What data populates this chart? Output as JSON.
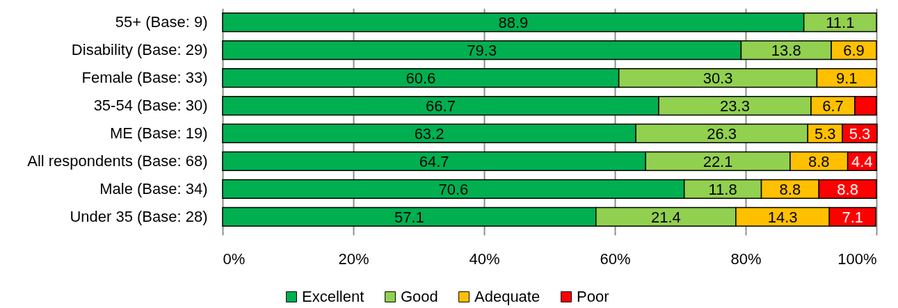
{
  "chart_data": {
    "type": "bar",
    "orientation": "horizontal",
    "stacked": true,
    "categories": [
      "55+ (Base: 9)",
      "Disability (Base: 29)",
      "Female (Base: 33)",
      "35-54 (Base: 30)",
      "ME (Base: 19)",
      "All respondents (Base: 68)",
      "Male (Base: 34)",
      "Under 35 (Base: 28)"
    ],
    "series": [
      {
        "name": "Excellent",
        "color": "#00b050",
        "values": [
          88.9,
          79.3,
          60.6,
          66.7,
          63.2,
          64.7,
          70.6,
          57.1
        ],
        "value_labels": [
          "88.9",
          "79.3",
          "60.6",
          "66.7",
          "63.2",
          "64.7",
          "70.6",
          "57.1"
        ]
      },
      {
        "name": "Good",
        "color": "#92d050",
        "values": [
          11.1,
          13.8,
          30.3,
          23.3,
          26.3,
          22.1,
          11.8,
          21.4
        ],
        "value_labels": [
          "11.1",
          "13.8",
          "30.3",
          "23.3",
          "26.3",
          "22.1",
          "11.8",
          "21.4"
        ]
      },
      {
        "name": "Adequate",
        "color": "#ffc000",
        "values": [
          null,
          6.9,
          9.1,
          6.7,
          5.3,
          8.8,
          8.8,
          14.3
        ],
        "value_labels": [
          null,
          "6.9",
          "9.1",
          "6.7",
          "5.3",
          "8.8",
          "8.8",
          "14.3"
        ]
      },
      {
        "name": "Poor",
        "color": "#ff0000",
        "values": [
          null,
          null,
          null,
          3.3,
          5.3,
          4.4,
          8.8,
          7.1
        ],
        "value_labels": [
          null,
          null,
          null,
          null,
          "5.3",
          "4.4",
          "8.8",
          "7.1"
        ]
      }
    ],
    "xlim": [
      0,
      100
    ],
    "xticks": [
      {
        "value": 0,
        "label": "0%"
      },
      {
        "value": 20,
        "label": "20%"
      },
      {
        "value": 40,
        "label": "40%"
      },
      {
        "value": 60,
        "label": "60%"
      },
      {
        "value": 80,
        "label": "80%"
      },
      {
        "value": 100,
        "label": "100%"
      }
    ],
    "grid": "x",
    "legend": "bottom"
  }
}
